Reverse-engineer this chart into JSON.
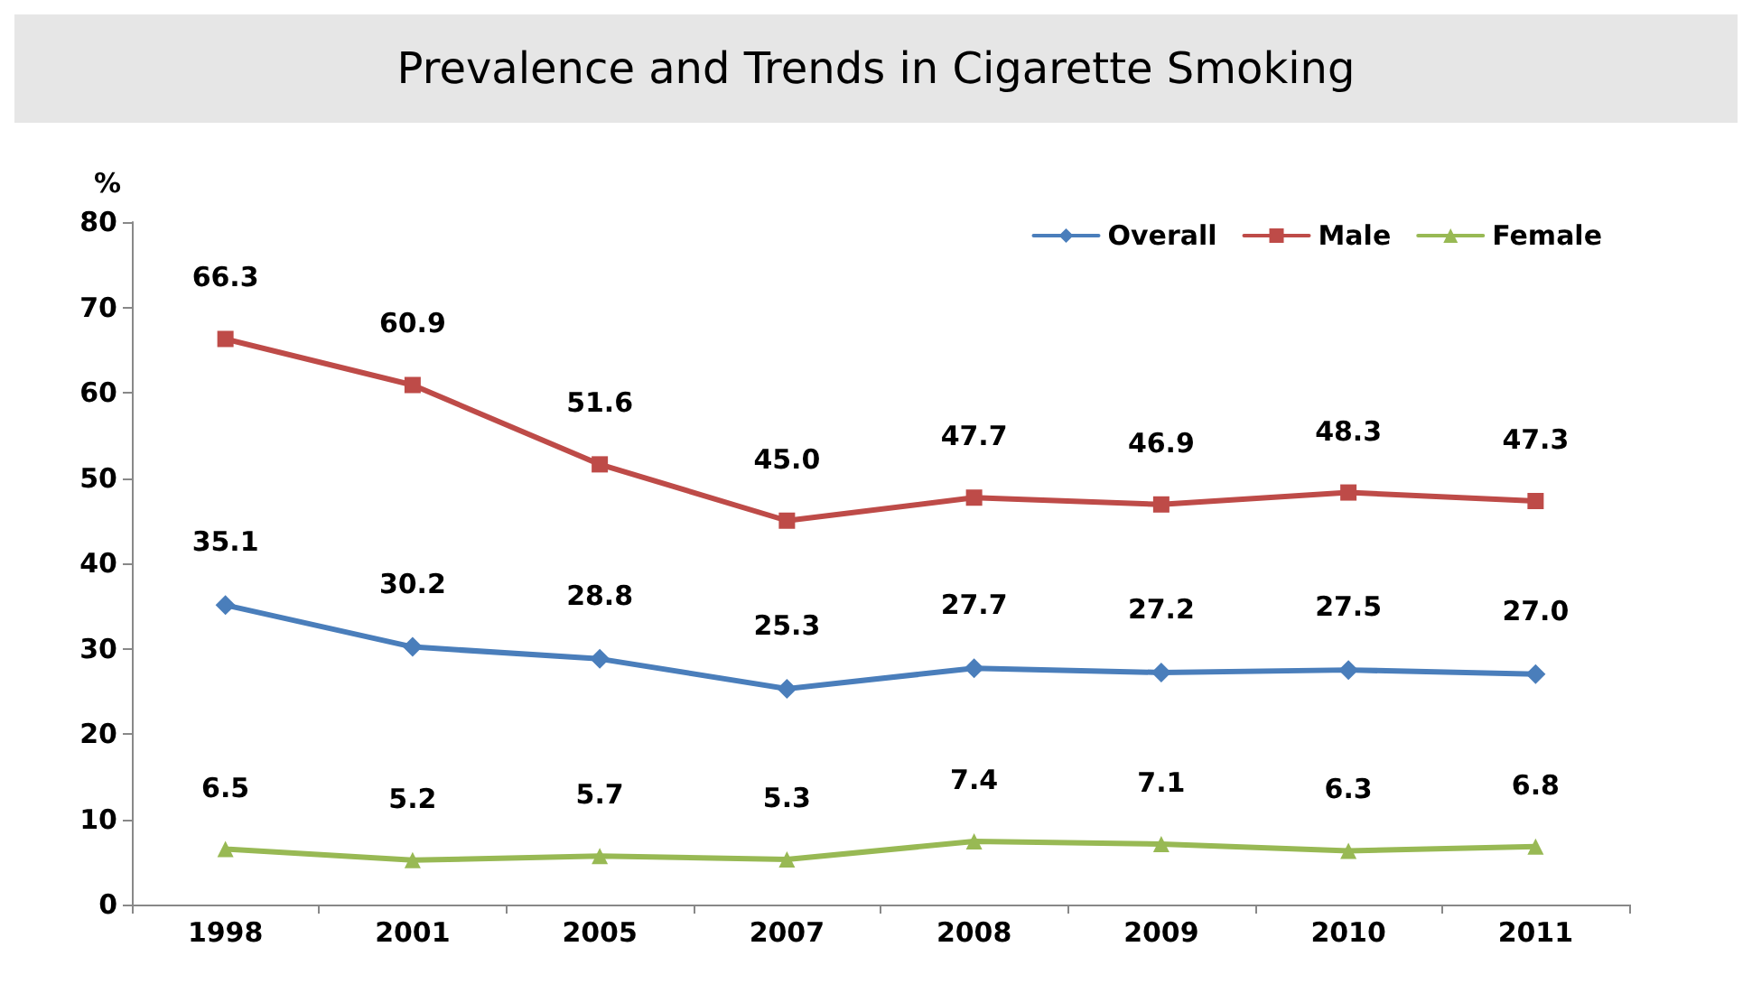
{
  "chart_data": {
    "type": "line",
    "title": "Prevalence and Trends in Cigarette Smoking",
    "ylabel": "%",
    "categories": [
      "1998",
      "2001",
      "2005",
      "2007",
      "2008",
      "2009",
      "2010",
      "2011"
    ],
    "series": [
      {
        "name": "Overall",
        "color": "#4a7ebb",
        "marker": "diamond",
        "values": [
          35.1,
          30.2,
          28.8,
          25.3,
          27.7,
          27.2,
          27.5,
          27.0
        ],
        "value_labels": [
          "35.1",
          "30.2",
          "28.8",
          "25.3",
          "27.7",
          "27.2",
          "27.5",
          "27.0"
        ]
      },
      {
        "name": "Male",
        "color": "#be4b48",
        "marker": "square",
        "values": [
          66.3,
          60.9,
          51.6,
          45.0,
          47.7,
          46.9,
          48.3,
          47.3
        ],
        "value_labels": [
          "66.3",
          "60.9",
          "51.6",
          "45.0",
          "47.7",
          "46.9",
          "48.3",
          "47.3"
        ]
      },
      {
        "name": "Female",
        "color": "#98b954",
        "marker": "triangle",
        "values": [
          6.5,
          5.2,
          5.7,
          5.3,
          7.4,
          7.1,
          6.3,
          6.8
        ],
        "value_labels": [
          "6.5",
          "5.2",
          "5.7",
          "5.3",
          "7.4",
          "7.1",
          "6.3",
          "6.8"
        ]
      }
    ],
    "ylim": [
      0,
      80
    ],
    "yticks": [
      0,
      10,
      20,
      30,
      40,
      50,
      60,
      70,
      80
    ],
    "grid": false,
    "legend": "top right",
    "line_style": "solid"
  }
}
